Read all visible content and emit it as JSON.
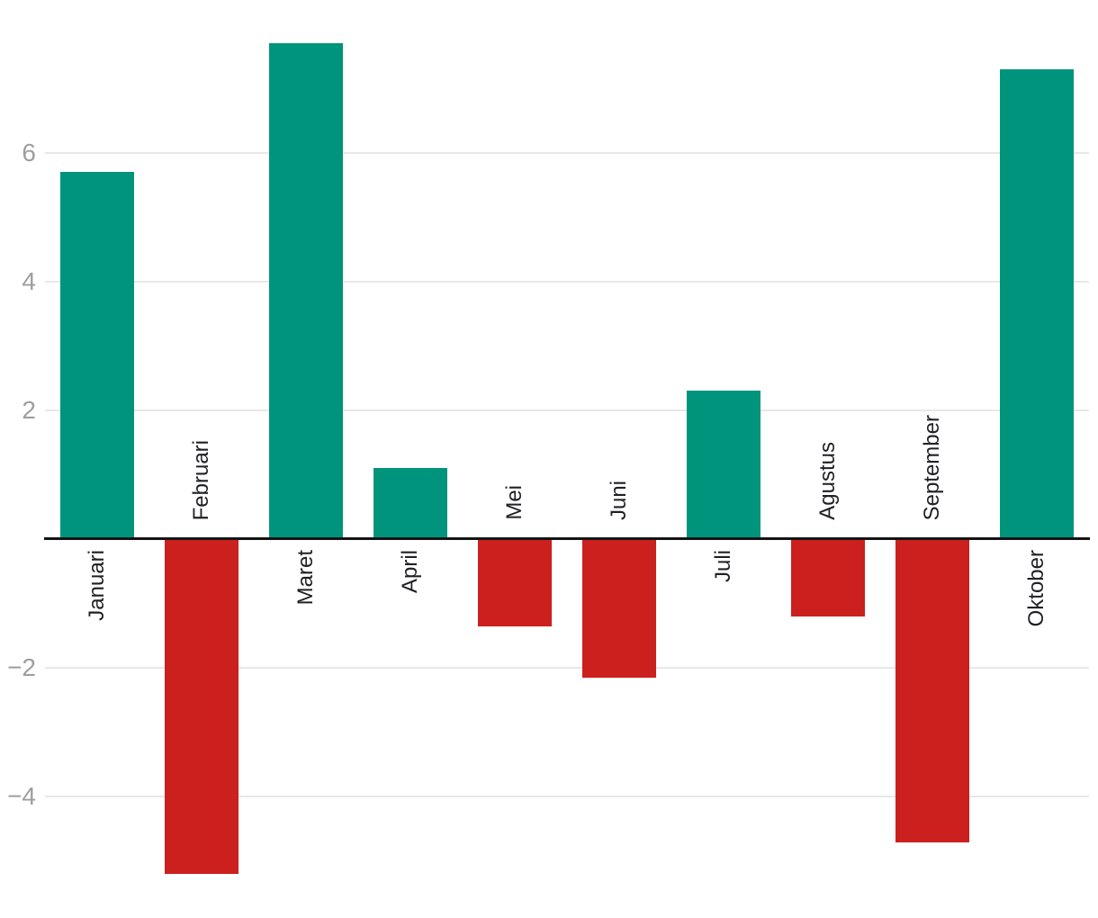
{
  "chart_data": {
    "type": "bar",
    "title": "",
    "xlabel": "",
    "ylabel": "",
    "categories": [
      "Januari",
      "Februari",
      "Maret",
      "April",
      "Mei",
      "Juni",
      "Juli",
      "Agustus",
      "September",
      "Oktober"
    ],
    "values": [
      5.7,
      -5.2,
      7.7,
      1.1,
      -1.35,
      -2.15,
      2.3,
      -1.2,
      -4.7,
      7.3
    ],
    "y_axis": {
      "ticks": [
        {
          "value": 6,
          "label": "6"
        },
        {
          "value": 4,
          "label": "4"
        },
        {
          "value": 2,
          "label": "2"
        },
        {
          "value": -2,
          "label": "−2"
        },
        {
          "value": -4,
          "label": "−4"
        }
      ],
      "range": [
        -5.9,
        8.4
      ]
    },
    "grid": true,
    "legend": "none",
    "category_label_style": "vertical-bottom-to-top, placed on opposite side of baseline from bar",
    "colors": {
      "positive_bar": "#00947c",
      "negative_bar": "#cb201e",
      "baseline": "#141414",
      "gridline": "#e8e8e8",
      "tick_label": "#9e9e9e",
      "category_label": "#202124",
      "background": "#ffffff"
    }
  }
}
